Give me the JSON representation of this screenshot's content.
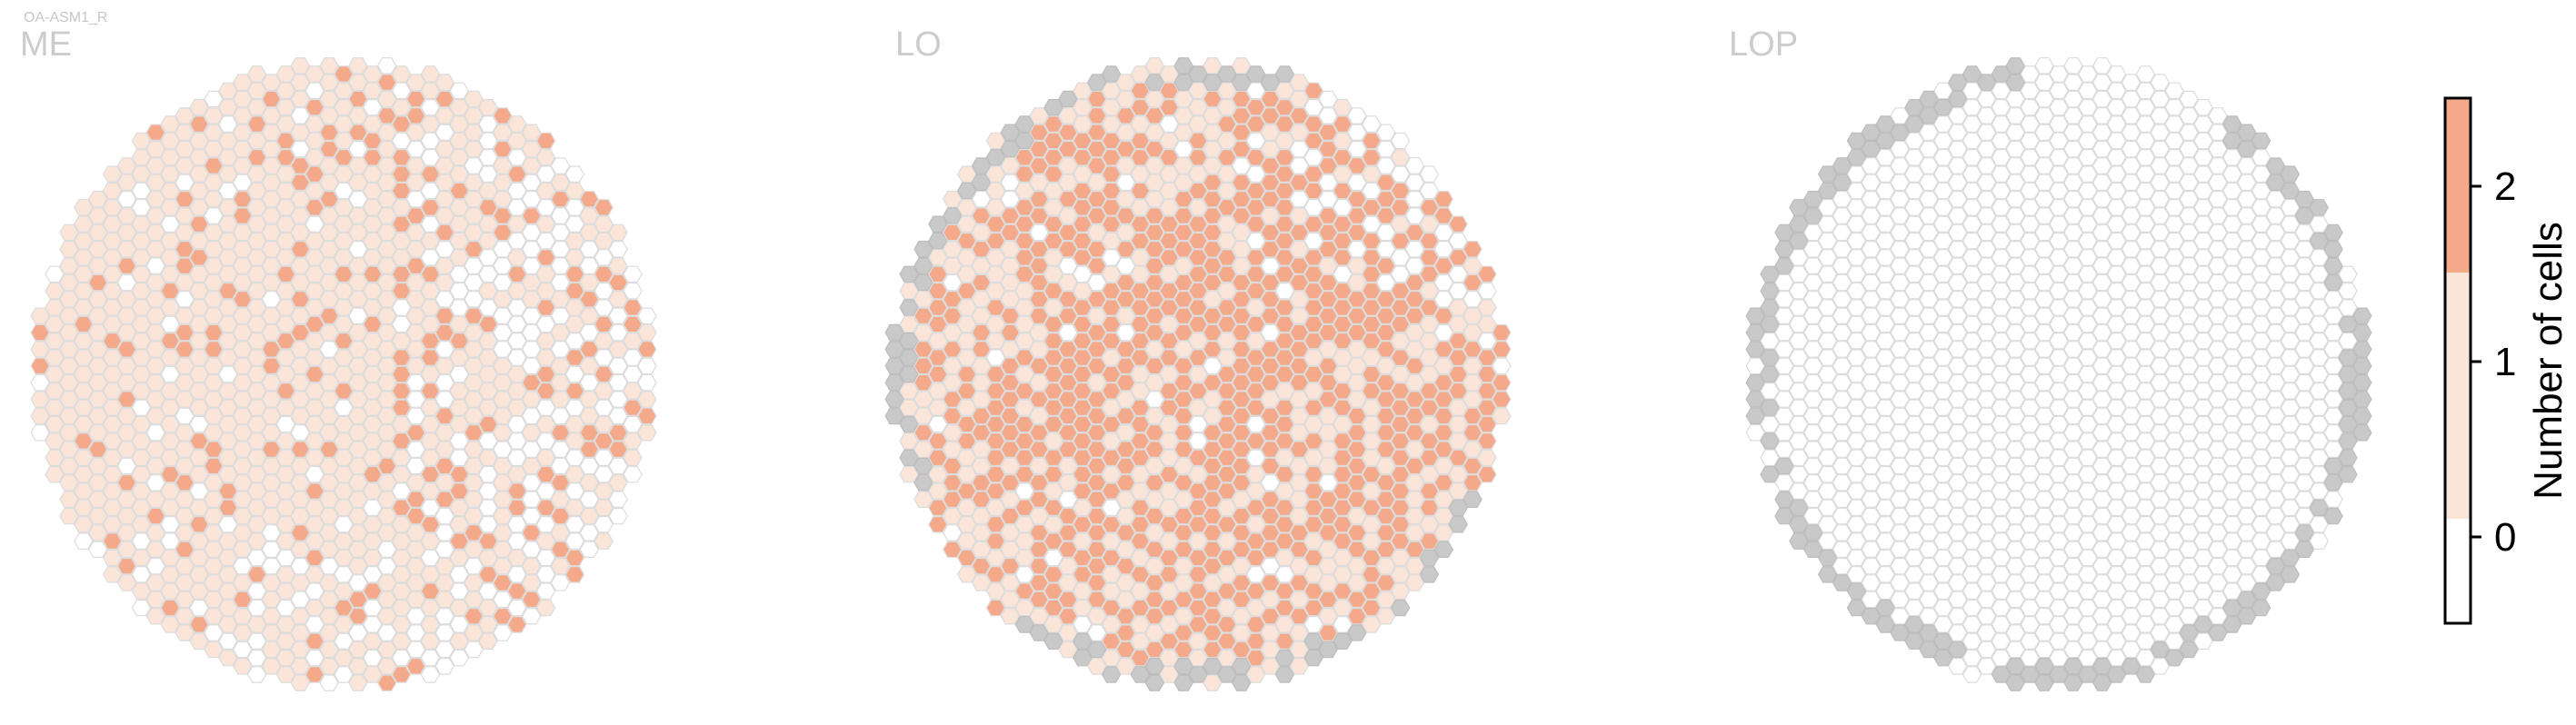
{
  "figure": {
    "caption": "OA-ASM1_R"
  },
  "colors": {
    "zero": "#ffffff",
    "one": "#fbe4d8",
    "two": "#f4a98a",
    "outside": "#c9c9c9",
    "grid_stroke": "#dcdcdc"
  },
  "chart_data": {
    "type": "heatmap",
    "layout": "hexagonal grid of optic columns, three panels side by side",
    "panels": [
      {
        "title": "ME",
        "summary": {
          "columns_with_2_cells": "many (scattered, denser in left/center)",
          "columns_with_1_cell": "majority",
          "columns_with_0_cells": "right and bottom-right region",
          "columns_outside_neuropil": 0
        }
      },
      {
        "title": "LO",
        "summary": {
          "columns_with_2_cells": "many (dense in center)",
          "columns_with_1_cell": "majority",
          "columns_with_0_cells": "top-right rim",
          "columns_outside_neuropil": "grey rim columns at top-left, left edge and bottom"
        }
      },
      {
        "title": "LOP",
        "summary": {
          "columns_with_2_cells": 0,
          "columns_with_1_cell": 0,
          "columns_with_0_cells": "all interior columns",
          "columns_outside_neuropil": "grey rim columns around the edge"
        }
      }
    ],
    "colorbar": {
      "label": "Number of cells",
      "ticks": [
        0,
        1,
        2
      ],
      "tick_labels": [
        "0",
        "1",
        "2"
      ],
      "range": [
        -0.5,
        2.5
      ],
      "levels": [
        {
          "value": 0,
          "color": "#ffffff"
        },
        {
          "value": 1,
          "color": "#fbe4d8"
        },
        {
          "value": 2,
          "color": "#f4a98a"
        }
      ]
    }
  }
}
